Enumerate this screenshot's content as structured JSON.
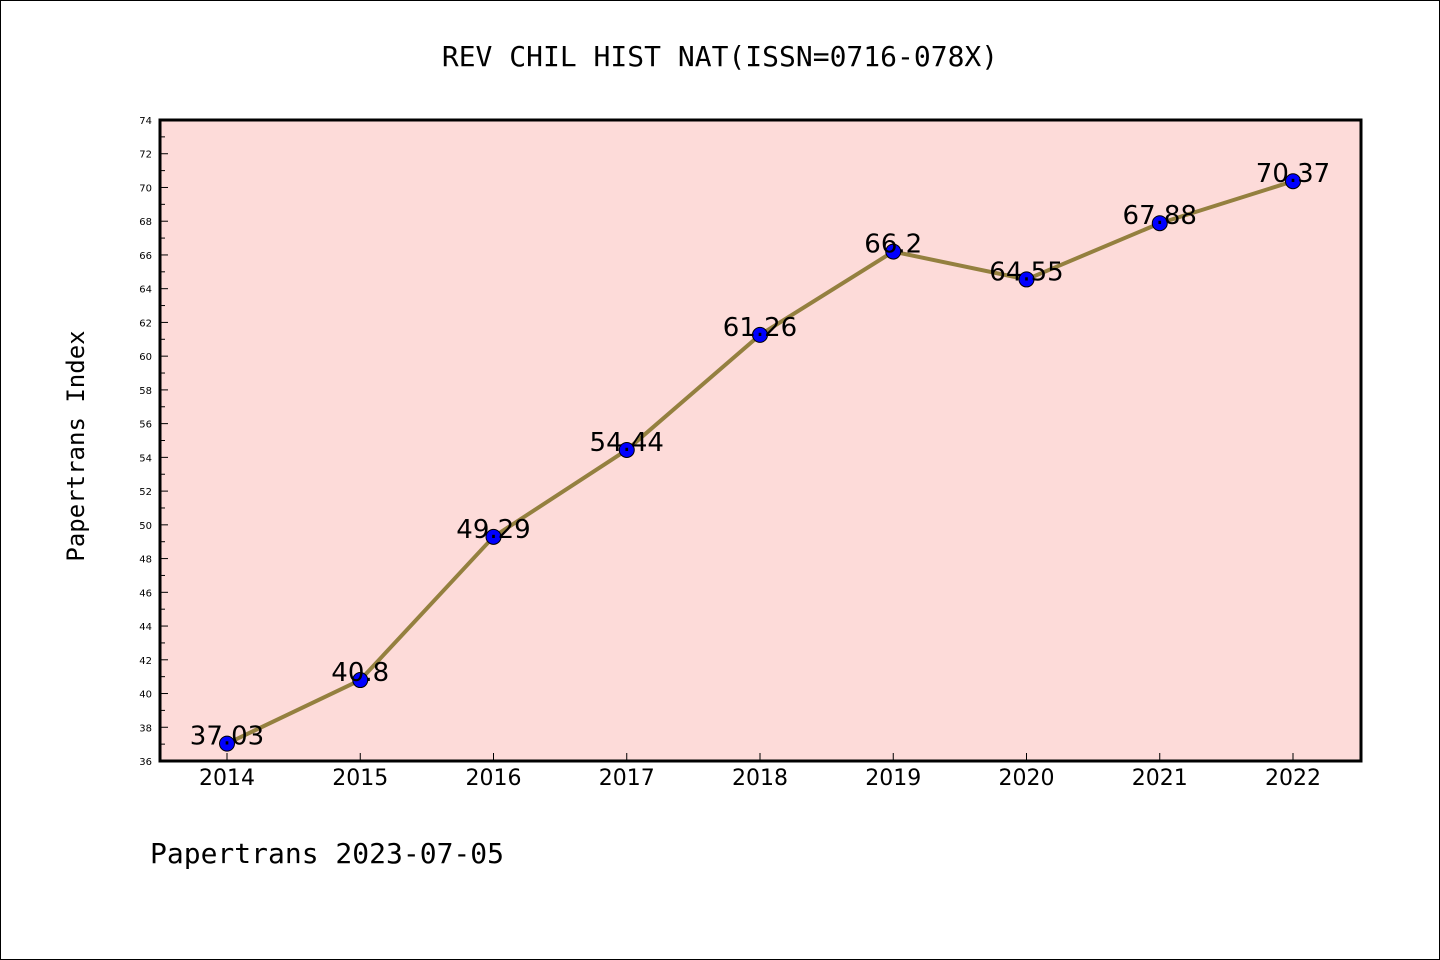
{
  "chart_data": {
    "type": "line",
    "title": "REV CHIL HIST NAT(ISSN=0716-078X)",
    "ylabel": "Papertrans Index",
    "xlabel": "",
    "categories": [
      "2014",
      "2015",
      "2016",
      "2017",
      "2018",
      "2019",
      "2020",
      "2021",
      "2022"
    ],
    "values": [
      37.03,
      40.8,
      49.29,
      54.44,
      61.26,
      66.2,
      64.55,
      67.88,
      70.37
    ],
    "data_labels": [
      "37.03",
      "40.8",
      "49.29",
      "54.44",
      "61.26",
      "66.2",
      "64.55",
      "67.88",
      "70.37"
    ],
    "ylim": [
      36,
      74
    ],
    "yticks": [
      36,
      38,
      40,
      42,
      44,
      46,
      48,
      50,
      52,
      54,
      56,
      58,
      60,
      62,
      64,
      66,
      68,
      70,
      72,
      74
    ],
    "grid": false,
    "legend": "none",
    "colors": {
      "line": "#94803f",
      "marker": "#0000ff",
      "plot_background": "#fddbd9"
    }
  },
  "footer": "Papertrans 2023-07-05"
}
